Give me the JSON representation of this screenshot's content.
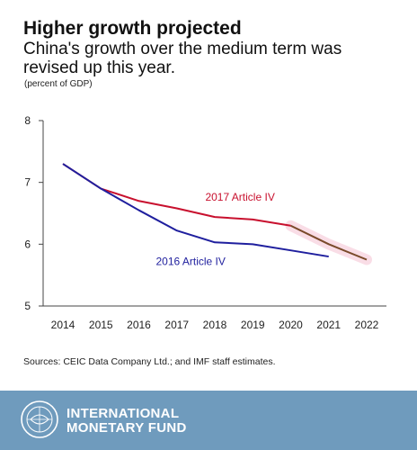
{
  "header": {
    "title": "Higher growth projected",
    "subtitle": "China's growth over the medium term was revised up this year.",
    "unit": "(percent of GDP)"
  },
  "chart_data": {
    "type": "line",
    "x": [
      2014,
      2015,
      2016,
      2017,
      2018,
      2019,
      2020,
      2021,
      2022
    ],
    "series": [
      {
        "name": "2017 Article IV",
        "color": "#c8102e",
        "values": [
          7.3,
          6.9,
          6.7,
          6.58,
          6.44,
          6.4,
          6.3,
          6.0,
          5.75
        ],
        "projection_from": 2020,
        "projection_color": "#7a4a2a"
      },
      {
        "name": "2016 Article IV",
        "color": "#1f1f9e",
        "values": [
          7.3,
          6.9,
          6.55,
          6.22,
          6.03,
          6.0,
          5.9,
          5.8,
          null
        ]
      }
    ],
    "ylim": [
      5,
      8
    ],
    "yticks": [
      5,
      6,
      7,
      8
    ],
    "xticks": [
      "2014",
      "2015",
      "2016",
      "2017",
      "2018",
      "2019",
      "2020",
      "2021",
      "2022"
    ],
    "grid": false,
    "shaded_projection": true
  },
  "source": "Sources: CEIC Data Company Ltd.; and IMF staff estimates.",
  "footer": {
    "line1": "INTERNATIONAL",
    "line2": "MONETARY FUND",
    "background": "#6f9bbd",
    "icon": "imf-seal-icon"
  }
}
